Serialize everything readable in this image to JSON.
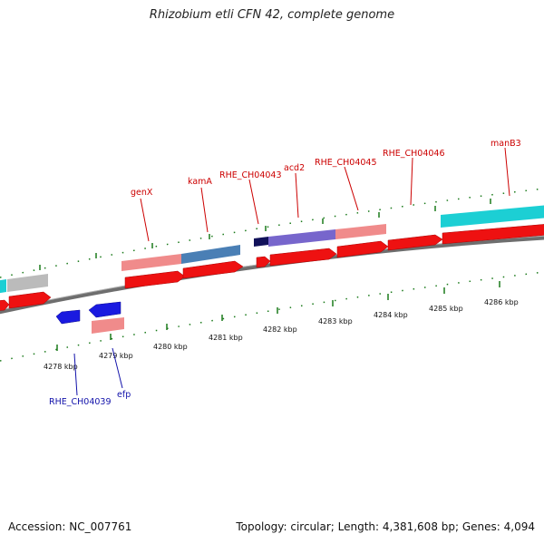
{
  "title": "Rhizobium etli CFN 42, complete genome",
  "footer": {
    "accession": "Accession: NC_007761",
    "summary": "Topology: circular; Length: 4,381,608 bp; Genes: 4,094"
  },
  "scale": {
    "tick_labels": [
      "4278 kbp",
      "4279 kbp",
      "4280 kbp",
      "4281 kbp",
      "4282 kbp",
      "4283 kbp",
      "4284 kbp",
      "4285 kbp",
      "4286 kbp"
    ]
  },
  "gene_labels": {
    "top": [
      "genX",
      "kamA",
      "RHE_CH04043",
      "acd2",
      "RHE_CH04045",
      "RHE_CH04046",
      "manB3"
    ],
    "bottom": [
      "RHE_CH04039",
      "efp"
    ]
  },
  "colors": {
    "forward_cds": "#ee1111",
    "reverse_cds": "#1a1ae0",
    "forward_label": "#cc0000",
    "reverse_label": "#1111aa",
    "backbone": "#777777",
    "tick": "#1a7a1a",
    "cog_pink": "#f08b8b",
    "cog_steelblue": "#4a7fb5",
    "cog_purple": "#7766cc",
    "cog_cyan": "#1ccfd4",
    "cog_gray": "#bbbbbb",
    "cog_navy": "#11115a"
  }
}
